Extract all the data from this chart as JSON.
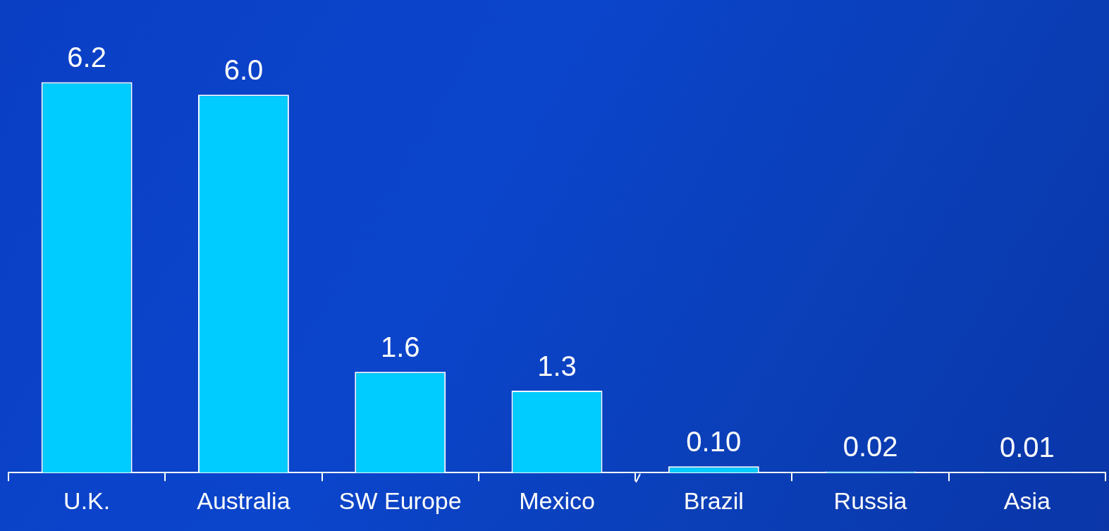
{
  "chart_data": {
    "type": "bar",
    "categories": [
      "U.K.",
      "Australia",
      "SW Europe",
      "Mexico",
      "Brazil",
      "Russia",
      "Asia"
    ],
    "values": [
      6.2,
      6.0,
      1.6,
      1.3,
      0.1,
      0.02,
      0.01
    ],
    "value_labels": [
      "6.2",
      "6.0",
      "1.6",
      "1.3",
      "0.10",
      "0.02",
      "0.01"
    ],
    "color": "#00ccff",
    "grid": false,
    "legend": false
  }
}
